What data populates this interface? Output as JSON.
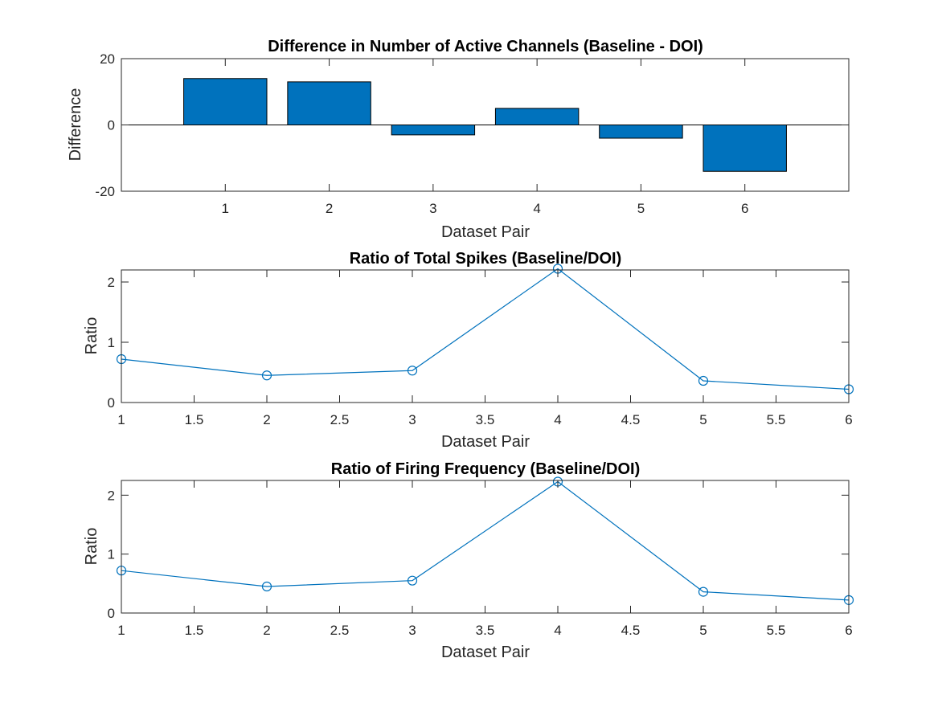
{
  "chart_data": [
    {
      "type": "bar",
      "title": "Difference in Number of Active Channels (Baseline - DOI)",
      "xlabel": "Dataset Pair",
      "ylabel": "Difference",
      "categories": [
        "1",
        "2",
        "3",
        "4",
        "5",
        "6"
      ],
      "values": [
        14,
        13,
        -3,
        5,
        -4,
        -14
      ],
      "xlim": [
        0,
        7
      ],
      "ylim": [
        -20,
        20
      ],
      "yticks": [
        "-20",
        "0",
        "20"
      ],
      "bar_color": "#0072BD",
      "grid": false
    },
    {
      "type": "line",
      "title": "Ratio of Total Spikes (Baseline/DOI)",
      "xlabel": "Dataset Pair",
      "ylabel": "Ratio",
      "x": [
        1,
        2,
        3,
        4,
        5,
        6
      ],
      "values": [
        0.72,
        0.45,
        0.53,
        2.22,
        0.36,
        0.22
      ],
      "xlim": [
        1,
        6
      ],
      "ylim": [
        0,
        2.2
      ],
      "xticks": [
        "1",
        "1.5",
        "2",
        "2.5",
        "3",
        "3.5",
        "4",
        "4.5",
        "5",
        "5.5",
        "6"
      ],
      "yticks": [
        "0",
        "1",
        "2"
      ],
      "marker": "circle",
      "line_color": "#0072BD",
      "grid": false
    },
    {
      "type": "line",
      "title": "Ratio of Firing Frequency (Baseline/DOI)",
      "xlabel": "Dataset Pair",
      "ylabel": "Ratio",
      "x": [
        1,
        2,
        3,
        4,
        5,
        6
      ],
      "values": [
        0.72,
        0.45,
        0.55,
        2.23,
        0.36,
        0.22
      ],
      "xlim": [
        1,
        6
      ],
      "ylim": [
        0,
        2.25
      ],
      "xticks": [
        "1",
        "1.5",
        "2",
        "2.5",
        "3",
        "3.5",
        "4",
        "4.5",
        "5",
        "5.5",
        "6"
      ],
      "yticks": [
        "0",
        "1",
        "2"
      ],
      "marker": "circle",
      "line_color": "#0072BD",
      "grid": false
    }
  ]
}
